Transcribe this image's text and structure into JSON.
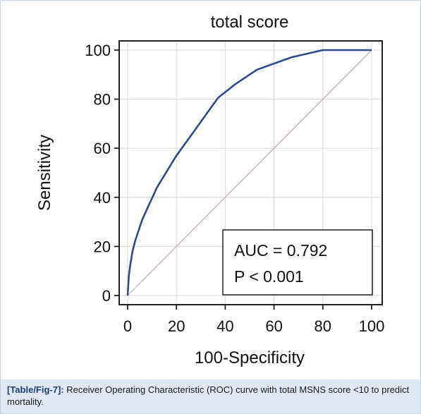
{
  "chart_data": {
    "type": "line",
    "title": "total score",
    "xlabel": "100-Specificity",
    "ylabel": "Sensitivity",
    "xlim": [
      0,
      100
    ],
    "ylim": [
      0,
      100
    ],
    "xticks": [
      0,
      20,
      40,
      60,
      80,
      100
    ],
    "yticks": [
      0,
      20,
      40,
      60,
      80,
      100
    ],
    "grid": true,
    "series": [
      {
        "x": [
          0,
          0.5,
          1,
          2,
          3,
          6,
          12,
          20,
          28,
          37,
          44,
          53,
          67,
          80,
          100
        ],
        "y": [
          0,
          8,
          12,
          18,
          22,
          31,
          44,
          57,
          68,
          80.5,
          86,
          92,
          97,
          100,
          100
        ],
        "color": "#2e4a8c"
      }
    ],
    "reference_line": {
      "x": [
        0,
        100
      ],
      "y": [
        0,
        100
      ],
      "color": "#c4a8a8"
    },
    "annotations": [
      "AUC = 0.792",
      "P < 0.001"
    ]
  },
  "caption": {
    "tag": "[Table/Fig-7]:",
    "text": "Receiver Operating Characteristic (ROC) curve with total MSNS score <10 to predict mortality."
  }
}
